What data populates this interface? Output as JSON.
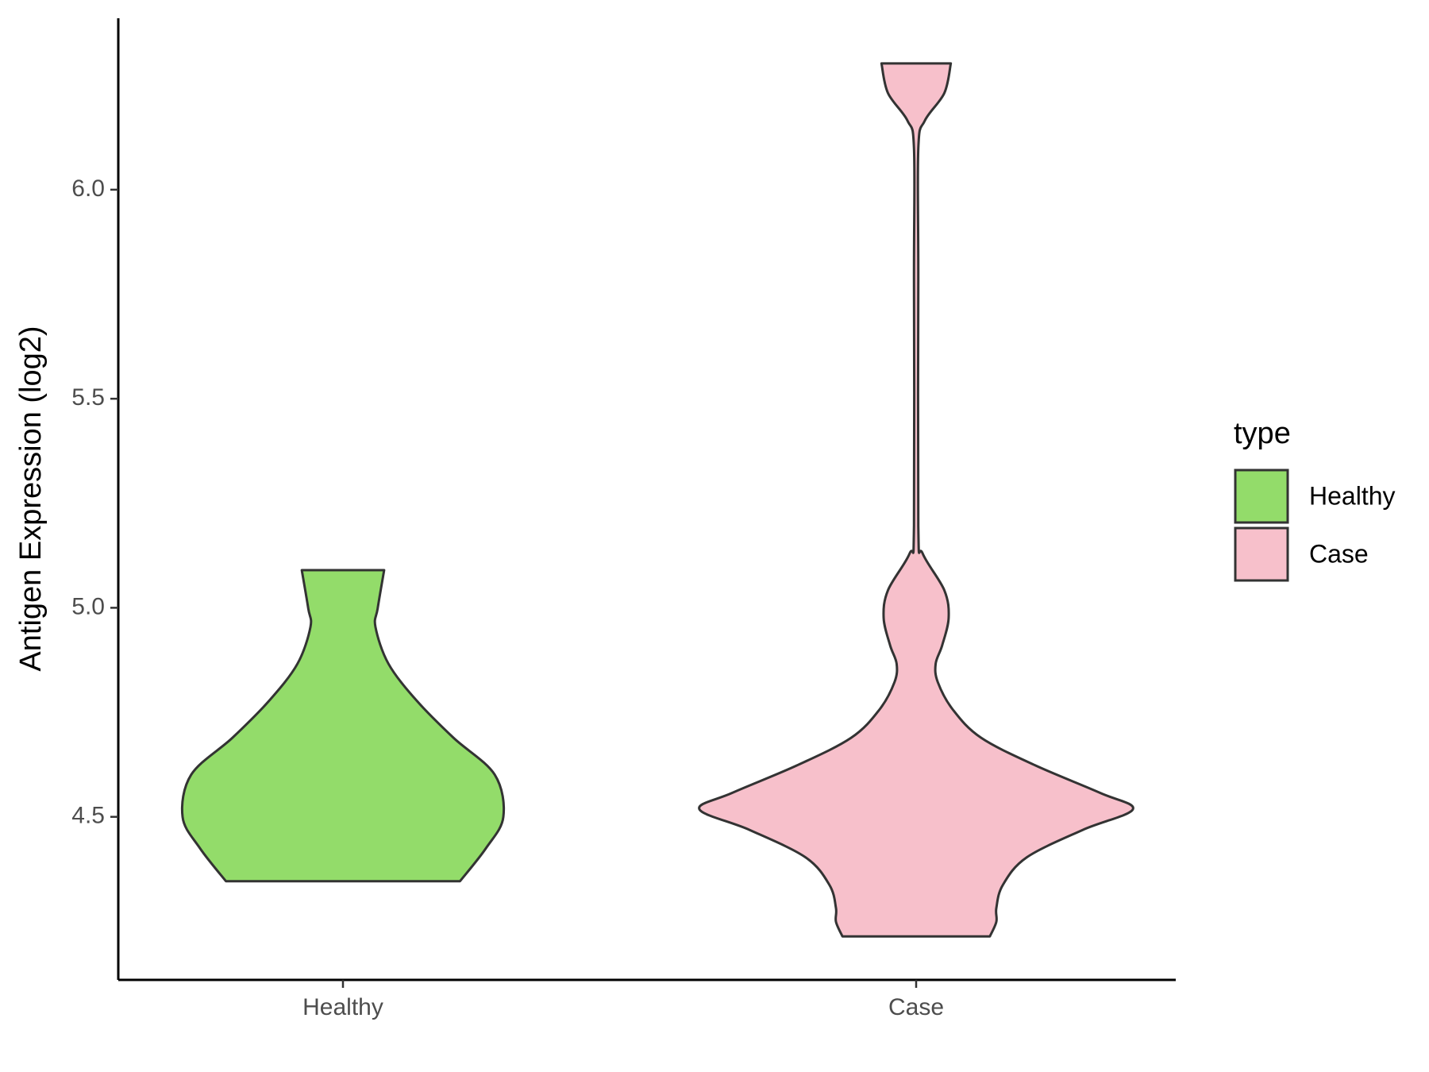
{
  "chart_data": {
    "type": "violin",
    "y_label": "Antigen Expression (log2)",
    "categories": [
      "Healthy",
      "Case"
    ],
    "legend_title": "type",
    "legend_position": "right",
    "ylim": [
      4.11,
      6.41
    ],
    "yticks": [
      4.5,
      {
        "value": 5,
        "label": "5.0"
      },
      5.5,
      {
        "value": 6,
        "label": "6.0"
      }
    ],
    "series": [
      {
        "name": "Healthy",
        "color": "#93dc6a",
        "y": [
          5.09,
          4.998,
          4.954,
          4.866,
          4.778,
          4.689,
          4.601,
          4.5,
          4.425,
          4.346
        ],
        "density": [
          0.19,
          0.16,
          0.15,
          0.21,
          0.34,
          0.51,
          0.7,
          0.74,
          0.66,
          0.54
        ]
      },
      {
        "name": "Case",
        "color": "#f7c0cb",
        "y": [
          6.302,
          6.231,
          6.165,
          6.099,
          5.791,
          5.196,
          5.13,
          5.042,
          4.976,
          4.91,
          4.866,
          4.822,
          4.756,
          4.689,
          4.623,
          4.557,
          4.518,
          4.469,
          4.403,
          4.337,
          4.282,
          4.249,
          4.214
        ],
        "density": [
          0.16,
          0.13,
          0.04,
          0.01,
          0.01,
          0.01,
          0.03,
          0.13,
          0.15,
          0.12,
          0.09,
          0.1,
          0.17,
          0.3,
          0.55,
          0.85,
          1.0,
          0.77,
          0.51,
          0.4,
          0.37,
          0.37,
          0.34
        ]
      }
    ]
  }
}
